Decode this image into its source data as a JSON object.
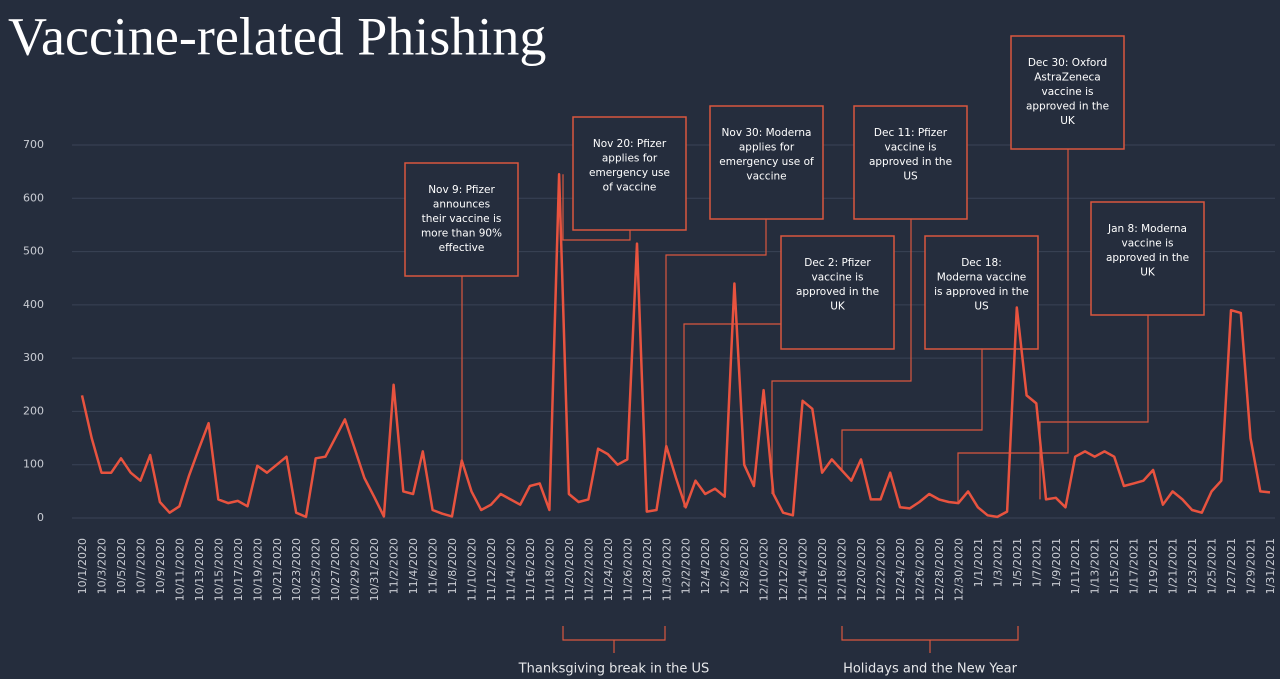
{
  "chart_data": {
    "type": "line",
    "title": "Vaccine-related Phishing",
    "categories": [
      "10/1/2020",
      null,
      "10/3/2020",
      null,
      "10/5/2020",
      null,
      "10/7/2020",
      null,
      "10/9/2020",
      null,
      "10/11/2020",
      null,
      "10/13/2020",
      null,
      "10/15/2020",
      null,
      "10/17/2020",
      null,
      "10/19/2020",
      null,
      "10/21/2020",
      null,
      "10/23/2020",
      null,
      "10/25/2020",
      null,
      "10/27/2020",
      null,
      "10/29/2020",
      null,
      "10/31/2020",
      null,
      "11/2/2020",
      null,
      "11/4/2020",
      null,
      "11/6/2020",
      null,
      "11/8/2020",
      null,
      "11/10/2020",
      null,
      "11/12/2020",
      null,
      "11/14/2020",
      null,
      "11/16/2020",
      null,
      "11/18/2020",
      null,
      "11/20/2020",
      null,
      "11/22/2020",
      null,
      "11/24/2020",
      null,
      "11/26/2020",
      null,
      "11/28/2020",
      null,
      "11/30/2020",
      null,
      "12/2/2020",
      null,
      "12/4/2020",
      null,
      "12/6/2020",
      null,
      "12/8/2020",
      null,
      "12/10/2020",
      null,
      "12/12/2020",
      null,
      "12/14/2020",
      null,
      "12/16/2020",
      null,
      "12/18/2020",
      null,
      "12/20/2020",
      null,
      "12/22/2020",
      null,
      "12/24/2020",
      null,
      "12/26/2020",
      null,
      "12/28/2020",
      null,
      "12/30/2020",
      null,
      "1/1/2021",
      null,
      "1/3/2021",
      null,
      "1/5/2021",
      null,
      "1/7/2021",
      null,
      "1/9/2021",
      null,
      "1/11/2021",
      null,
      "1/13/2021",
      null,
      "1/15/2021",
      null,
      "1/17/2021",
      null,
      "1/19/2021",
      null,
      "1/21/2021",
      null,
      "1/23/2021",
      null,
      "1/25/2021",
      null,
      "1/27/2021",
      null,
      "1/29/2021",
      null,
      "1/31/2021"
    ],
    "values": [
      230,
      150,
      85,
      85,
      112,
      85,
      70,
      118,
      30,
      10,
      22,
      80,
      130,
      178,
      35,
      28,
      32,
      22,
      98,
      85,
      100,
      115,
      10,
      2,
      112,
      115,
      150,
      185,
      130,
      75,
      40,
      3,
      250,
      50,
      45,
      125,
      15,
      8,
      3,
      108,
      50,
      15,
      25,
      45,
      35,
      25,
      60,
      65,
      15,
      645,
      45,
      30,
      35,
      130,
      120,
      100,
      110,
      515,
      12,
      15,
      135,
      75,
      20,
      70,
      45,
      55,
      40,
      440,
      100,
      60,
      240,
      45,
      10,
      5,
      220,
      205,
      85,
      110,
      90,
      70,
      110,
      35,
      35,
      85,
      20,
      18,
      30,
      45,
      35,
      30,
      28,
      50,
      20,
      5,
      2,
      12,
      395,
      230,
      215,
      35,
      38,
      20,
      115,
      125,
      115,
      125,
      115,
      60,
      65,
      70,
      90,
      25,
      50,
      35,
      15,
      10,
      50,
      70,
      390,
      385,
      150,
      50,
      48
    ],
    "color": "#e8533f",
    "ylim": [
      0,
      700
    ],
    "yticks": [
      0,
      100,
      200,
      300,
      400,
      500,
      600,
      700
    ],
    "grid": true,
    "annotations": [
      {
        "lines": [
          "Nov 9: Pfizer",
          "announces",
          "their vaccine is",
          "more than 90%",
          "effective"
        ]
      },
      {
        "lines": [
          "Nov 20: Pfizer",
          "applies for",
          "emergency use",
          "of vaccine"
        ]
      },
      {
        "lines": [
          "Nov 30: Moderna",
          "applies for",
          "emergency use of",
          "vaccine"
        ]
      },
      {
        "lines": [
          "Dec 2: Pfizer",
          "vaccine is",
          "approved in the",
          "UK"
        ]
      },
      {
        "lines": [
          "Dec 11: Pfizer",
          "vaccine is",
          "approved in the",
          "US"
        ]
      },
      {
        "lines": [
          "Dec 18:",
          "Moderna vaccine",
          "is approved in the",
          "US"
        ]
      },
      {
        "lines": [
          "Dec 30: Oxford",
          "AstraZeneca",
          "vaccine is",
          "approved in the",
          "UK"
        ]
      },
      {
        "lines": [
          "Jan 8: Moderna",
          "vaccine is",
          "approved in the",
          "UK"
        ]
      }
    ],
    "periods": [
      {
        "label": "Thanksgiving break in the US"
      },
      {
        "label": "Holidays and the New Year"
      }
    ]
  }
}
